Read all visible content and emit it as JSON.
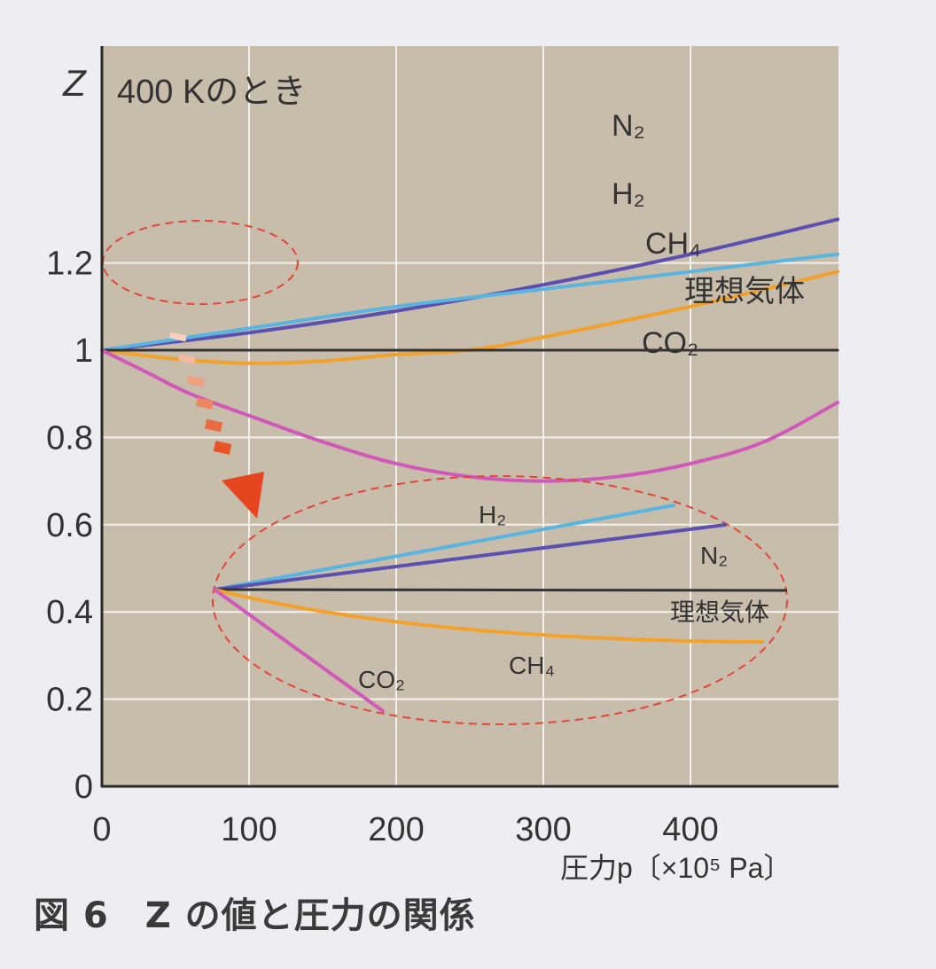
{
  "caption": "図 6　Z の値と圧力の関係",
  "chart_data": {
    "type": "line",
    "title": "400 Kのとき",
    "ylabel": "Z",
    "xlabel": "圧力p〔×10⁵ Pa〕",
    "x_range": [
      0,
      500
    ],
    "ylim": [
      0,
      1.3
    ],
    "x_ticks": [
      "0",
      "100",
      "200",
      "300",
      "400"
    ],
    "y_ticks": [
      "0",
      "0.2",
      "0.4",
      "0.6",
      "0.8",
      "1",
      "1.2"
    ],
    "grid": true,
    "series": [
      {
        "name": "N₂",
        "color": "#5b4fb0",
        "x": [
          0,
          100,
          200,
          300,
          400,
          500
        ],
        "y": [
          1.0,
          1.04,
          1.09,
          1.15,
          1.22,
          1.3
        ]
      },
      {
        "name": "H₂",
        "color": "#5ab4e0",
        "x": [
          0,
          100,
          200,
          300,
          400,
          500
        ],
        "y": [
          1.0,
          1.05,
          1.1,
          1.14,
          1.18,
          1.22
        ]
      },
      {
        "name": "CH₄",
        "color": "#f2a22a",
        "x": [
          0,
          50,
          100,
          150,
          200,
          250,
          300,
          400,
          500
        ],
        "y": [
          1.0,
          0.98,
          0.97,
          0.975,
          0.99,
          1.0,
          1.03,
          1.1,
          1.18
        ]
      },
      {
        "name": "理想気体",
        "color": "#333333",
        "x": [
          0,
          500
        ],
        "y": [
          1.0,
          1.0
        ]
      },
      {
        "name": "CO₂",
        "color": "#d058b8",
        "x": [
          0,
          30,
          60,
          100,
          150,
          200,
          250,
          300,
          350,
          400,
          450,
          500
        ],
        "y": [
          1.0,
          0.95,
          0.9,
          0.85,
          0.79,
          0.74,
          0.71,
          0.7,
          0.71,
          0.74,
          0.79,
          0.88
        ]
      }
    ],
    "inset_labels": [
      "H₂",
      "N₂",
      "理想気体",
      "CH₄",
      "CO₂"
    ]
  }
}
